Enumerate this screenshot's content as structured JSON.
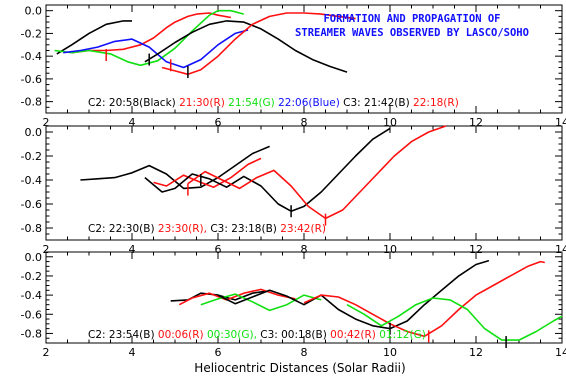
{
  "title_lines": [
    "FORMATION AND PROPAGATION OF",
    "STREAMER WAVES OBSERVED BY LASCO/SOHO"
  ],
  "xlabel": "Heliocentric Distances (Solar Radii)",
  "colors": {
    "black": "#000000",
    "red": "#ff1010",
    "green": "#10e010",
    "blue": "#1010ff",
    "title": "#1010ff"
  },
  "chart_data": [
    {
      "type": "line",
      "xlim": [
        2,
        14
      ],
      "ylim": [
        -0.9,
        0.05
      ],
      "xticks": [
        2,
        4,
        6,
        8,
        10,
        12,
        14
      ],
      "yticks": [
        0.0,
        -0.2,
        -0.4,
        -0.6,
        -0.8
      ],
      "yticklabels": [
        "0.0",
        "-0.2",
        "-0.4",
        "-0.6",
        "-0.8"
      ],
      "legend": [
        {
          "text": "C2: 20:58(Black)",
          "color": "black"
        },
        {
          "text": "21:30(R)",
          "color": "red"
        },
        {
          "text": "21:54(G)",
          "color": "green"
        },
        {
          "text": "22:06(Blue)",
          "color": "blue"
        },
        {
          "text": "C3: 21:42(B)",
          "color": "black"
        },
        {
          "text": "22:18(R)",
          "color": "red"
        }
      ],
      "series": [
        {
          "color": "black",
          "x": [
            2.25,
            2.6,
            3.0,
            3.4,
            3.8,
            4.0
          ],
          "y": [
            -0.38,
            -0.3,
            -0.2,
            -0.12,
            -0.09,
            -0.09
          ]
        },
        {
          "color": "red",
          "x": [
            2.6,
            3.0,
            3.4,
            3.8,
            4.2,
            4.5,
            4.8,
            5.0,
            5.3,
            5.5,
            5.8,
            6.0,
            6.3
          ],
          "y": [
            -0.37,
            -0.35,
            -0.35,
            -0.34,
            -0.3,
            -0.24,
            -0.15,
            -0.1,
            -0.05,
            -0.03,
            -0.02,
            -0.04,
            -0.06
          ]
        },
        {
          "color": "green",
          "x": [
            2.2,
            2.6,
            3.0,
            3.5,
            3.9,
            4.2,
            4.6,
            5.0,
            5.4,
            5.8,
            6.0,
            6.3,
            6.6
          ],
          "y": [
            -0.35,
            -0.37,
            -0.35,
            -0.38,
            -0.45,
            -0.48,
            -0.44,
            -0.33,
            -0.18,
            -0.04,
            0.0,
            0.0,
            -0.03
          ]
        },
        {
          "color": "blue",
          "x": [
            2.4,
            2.8,
            3.2,
            3.6,
            4.0,
            4.4,
            4.8,
            5.2,
            5.6,
            6.0,
            6.4,
            6.7
          ],
          "y": [
            -0.37,
            -0.35,
            -0.32,
            -0.27,
            -0.25,
            -0.32,
            -0.45,
            -0.5,
            -0.43,
            -0.3,
            -0.2,
            -0.17
          ]
        },
        {
          "color": "black",
          "x": [
            4.3,
            4.6,
            5.0,
            5.4,
            5.8,
            6.2,
            6.6,
            7.0,
            7.4,
            7.8,
            8.2,
            8.6,
            9.0
          ],
          "y": [
            -0.45,
            -0.38,
            -0.28,
            -0.19,
            -0.12,
            -0.09,
            -0.1,
            -0.16,
            -0.25,
            -0.35,
            -0.43,
            -0.49,
            -0.54
          ]
        },
        {
          "color": "red",
          "x": [
            4.7,
            5.0,
            5.3,
            5.6,
            6.0,
            6.4,
            6.8,
            7.2,
            7.6,
            8.0,
            8.4,
            8.8,
            9.2
          ],
          "y": [
            -0.5,
            -0.53,
            -0.56,
            -0.52,
            -0.4,
            -0.25,
            -0.12,
            -0.05,
            -0.02,
            -0.02,
            -0.03,
            -0.05,
            -0.07
          ]
        }
      ],
      "markers": [
        {
          "x": 3.4,
          "y": -0.39,
          "color": "red"
        },
        {
          "x": 4.4,
          "y": -0.43,
          "color": "black"
        },
        {
          "x": 4.9,
          "y": -0.48,
          "color": "red"
        },
        {
          "x": 5.3,
          "y": -0.54,
          "color": "black"
        }
      ]
    },
    {
      "type": "line",
      "xlim": [
        2,
        14
      ],
      "ylim": [
        -0.9,
        0.05
      ],
      "xticks": [
        2,
        4,
        6,
        8,
        10,
        12,
        14
      ],
      "yticks": [
        0.0,
        -0.2,
        -0.4,
        -0.6,
        -0.8
      ],
      "yticklabels": [
        "0.0",
        "-0.2",
        "-0.4",
        "-0.6",
        "-0.8"
      ],
      "legend": [
        {
          "text": "C2: 22:30(B)",
          "color": "black"
        },
        {
          "text": "23:30(R),",
          "color": "red"
        },
        {
          "text": "C3: 23:18(B)",
          "color": "black"
        },
        {
          "text": "23:42(R)",
          "color": "red"
        }
      ],
      "series": [
        {
          "color": "black",
          "x": [
            2.8,
            3.2,
            3.6,
            4.0,
            4.4,
            4.8,
            5.2,
            5.6,
            6.0,
            6.4,
            6.8,
            7.2
          ],
          "y": [
            -0.4,
            -0.39,
            -0.38,
            -0.34,
            -0.28,
            -0.35,
            -0.47,
            -0.46,
            -0.38,
            -0.28,
            -0.18,
            -0.12
          ]
        },
        {
          "color": "red",
          "x": [
            4.5,
            4.8,
            5.2,
            5.6,
            5.9,
            6.3,
            6.7,
            7.0
          ],
          "y": [
            -0.42,
            -0.45,
            -0.36,
            -0.42,
            -0.46,
            -0.38,
            -0.27,
            -0.22
          ]
        },
        {
          "color": "black",
          "x": [
            4.3,
            4.7,
            5.0,
            5.4,
            5.8,
            6.2,
            6.6,
            7.0,
            7.4,
            7.7,
            8.0,
            8.4,
            8.8,
            9.2,
            9.6,
            10.0
          ],
          "y": [
            -0.38,
            -0.5,
            -0.47,
            -0.35,
            -0.39,
            -0.46,
            -0.37,
            -0.45,
            -0.6,
            -0.66,
            -0.62,
            -0.5,
            -0.35,
            -0.2,
            -0.06,
            0.03
          ]
        },
        {
          "color": "red",
          "x": [
            5.3,
            5.7,
            6.1,
            6.5,
            6.9,
            7.3,
            7.7,
            8.1,
            8.5,
            8.9,
            9.3,
            9.7,
            10.1,
            10.5,
            10.9,
            11.3
          ],
          "y": [
            -0.43,
            -0.33,
            -0.4,
            -0.47,
            -0.38,
            -0.32,
            -0.45,
            -0.62,
            -0.72,
            -0.65,
            -0.5,
            -0.35,
            -0.2,
            -0.08,
            0.0,
            0.05
          ]
        }
      ],
      "markers": [
        {
          "x": 5.3,
          "y": -0.48,
          "color": "red"
        },
        {
          "x": 5.6,
          "y": -0.4,
          "color": "black"
        },
        {
          "x": 7.7,
          "y": -0.66,
          "color": "black"
        },
        {
          "x": 8.5,
          "y": -0.73,
          "color": "red"
        }
      ]
    },
    {
      "type": "line",
      "xlim": [
        2,
        14
      ],
      "ylim": [
        -0.9,
        0.05
      ],
      "xticks": [
        2,
        4,
        6,
        8,
        10,
        12,
        14
      ],
      "yticks": [
        0.0,
        -0.2,
        -0.4,
        -0.6,
        -0.8
      ],
      "yticklabels": [
        "0.0",
        "-0.2",
        "-0.4",
        "-0.6",
        "-0.8"
      ],
      "legend": [
        {
          "text": "C2: 23:54(B)",
          "color": "black"
        },
        {
          "text": "00:06(R)",
          "color": "red"
        },
        {
          "text": "00:30(G),",
          "color": "green"
        },
        {
          "text": "C3: 00:18(B)",
          "color": "black"
        },
        {
          "text": "00:42(R)",
          "color": "red"
        },
        {
          "text": "01:12(G)",
          "color": "green"
        }
      ],
      "series": [
        {
          "color": "black",
          "x": [
            4.9,
            5.3,
            5.6,
            6.0,
            6.4,
            6.8,
            7.1
          ],
          "y": [
            -0.46,
            -0.45,
            -0.38,
            -0.4,
            -0.45,
            -0.38,
            -0.36
          ]
        },
        {
          "color": "red",
          "x": [
            5.1,
            5.4,
            5.8,
            6.2,
            6.6,
            7.0,
            7.4,
            7.8
          ],
          "y": [
            -0.5,
            -0.43,
            -0.38,
            -0.45,
            -0.38,
            -0.34,
            -0.4,
            -0.44
          ]
        },
        {
          "color": "green",
          "x": [
            5.6,
            6.0,
            6.4,
            6.8,
            7.2,
            7.6,
            8.0,
            8.4
          ],
          "y": [
            -0.5,
            -0.44,
            -0.39,
            -0.47,
            -0.56,
            -0.5,
            -0.4,
            -0.45
          ]
        },
        {
          "color": "black",
          "x": [
            6.0,
            6.4,
            6.8,
            7.2,
            7.6,
            8.0,
            8.4,
            8.8,
            9.2,
            9.6,
            10.0,
            10.4,
            10.8,
            11.2,
            11.6,
            12.0,
            12.3
          ],
          "y": [
            -0.4,
            -0.49,
            -0.42,
            -0.35,
            -0.41,
            -0.5,
            -0.4,
            -0.55,
            -0.65,
            -0.72,
            -0.75,
            -0.67,
            -0.5,
            -0.35,
            -0.2,
            -0.08,
            -0.04
          ]
        },
        {
          "color": "red",
          "x": [
            8.0,
            8.4,
            8.8,
            9.2,
            9.6,
            10.0,
            10.4,
            10.8,
            11.2,
            11.6,
            12.0,
            12.4,
            12.8,
            13.2,
            13.5,
            13.6
          ],
          "y": [
            -0.48,
            -0.4,
            -0.42,
            -0.5,
            -0.6,
            -0.7,
            -0.78,
            -0.83,
            -0.72,
            -0.55,
            -0.4,
            -0.3,
            -0.2,
            -0.1,
            -0.05,
            -0.06
          ]
        },
        {
          "color": "green",
          "x": [
            9.0,
            9.4,
            9.8,
            10.2,
            10.6,
            11.0,
            11.4,
            11.8,
            12.2,
            12.6,
            13.0,
            13.4,
            13.8,
            14.0
          ],
          "y": [
            -0.5,
            -0.6,
            -0.72,
            -0.62,
            -0.5,
            -0.43,
            -0.45,
            -0.55,
            -0.75,
            -0.87,
            -0.87,
            -0.78,
            -0.67,
            -0.62
          ]
        }
      ],
      "markers": [
        {
          "x": 10.0,
          "y": -0.75,
          "color": "black"
        },
        {
          "x": 10.9,
          "y": -0.83,
          "color": "red"
        },
        {
          "x": 12.7,
          "y": -0.89,
          "color": "black"
        }
      ]
    }
  ]
}
